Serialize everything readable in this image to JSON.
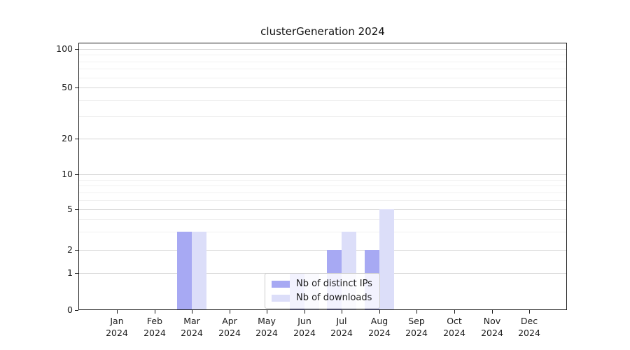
{
  "figure": {
    "title": "clusterGeneration 2024"
  },
  "chart_data": {
    "type": "bar",
    "title": "clusterGeneration 2024",
    "categories": [
      "Jan",
      "Feb",
      "Mar",
      "Apr",
      "May",
      "Jun",
      "Jul",
      "Aug",
      "Sep",
      "Oct",
      "Nov",
      "Dec"
    ],
    "x_year_label": "2024",
    "series": [
      {
        "name": "Nb of distinct IPs",
        "color": "#a7a9f3",
        "values": [
          0,
          0,
          3,
          0,
          0,
          1,
          2,
          2,
          0,
          0,
          0,
          0
        ]
      },
      {
        "name": "Nb of downloads",
        "color": "#dcdef9",
        "values": [
          0,
          0,
          3,
          0,
          0,
          1,
          3,
          5,
          0,
          0,
          0,
          0
        ]
      }
    ],
    "y_axis": {
      "scale": "symlog",
      "tick_values": [
        0,
        1,
        2,
        5,
        10,
        20,
        50,
        100
      ],
      "tick_labels": [
        "0",
        "1",
        "2",
        "5",
        "10",
        "20",
        "50",
        "100"
      ],
      "minor_gridlines": [
        3,
        4,
        6,
        7,
        8,
        9,
        30,
        40,
        60,
        70,
        80,
        90
      ],
      "range": [
        0,
        100
      ]
    },
    "legend": {
      "position": "lower-center",
      "entries": [
        "Nb of distinct IPs",
        "Nb of downloads"
      ]
    },
    "grid": true,
    "colors": {
      "axis": "#1a1a1a",
      "grid_labeled": "#d6d6d6",
      "grid_minor": "#f0f0f0",
      "background": "#ffffff"
    }
  }
}
